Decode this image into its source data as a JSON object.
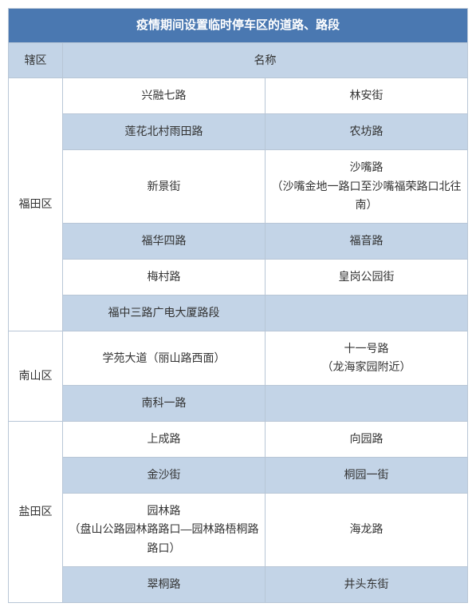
{
  "title": "疫情期间设置临时停车区的道路、路段",
  "headers": {
    "district": "辖区",
    "name": "名称"
  },
  "districts": [
    {
      "name": "福田区",
      "rows": [
        {
          "c1": "兴融七路",
          "c2": "林安街",
          "stripe": false
        },
        {
          "c1": "莲花北村雨田路",
          "c2": "农坊路",
          "stripe": true
        },
        {
          "c1": "新景街",
          "c2": "沙嘴路\n（沙嘴金地一路口至沙嘴福荣路口北往南）",
          "stripe": false
        },
        {
          "c1": "福华四路",
          "c2": "福音路",
          "stripe": true
        },
        {
          "c1": "梅村路",
          "c2": "皇岗公园街",
          "stripe": false
        },
        {
          "c1": "福中三路广电大厦路段",
          "c2": "",
          "stripe": true
        }
      ]
    },
    {
      "name": "南山区",
      "rows": [
        {
          "c1": "学苑大道（丽山路西面）",
          "c2": "十一号路\n（龙海家园附近）",
          "stripe": false
        },
        {
          "c1": "南科一路",
          "c2": "",
          "stripe": true
        }
      ]
    },
    {
      "name": "盐田区",
      "rows": [
        {
          "c1": "上成路",
          "c2": "向园路",
          "stripe": false
        },
        {
          "c1": "金沙街",
          "c2": "桐园一街",
          "stripe": true
        },
        {
          "c1": "园林路\n（盘山公路园林路路口—园林路梧桐路路口）",
          "c2": "海龙路",
          "stripe": false
        },
        {
          "c1": "翠桐路",
          "c2": "井头东街",
          "stripe": true
        }
      ]
    }
  ],
  "colors": {
    "title_bg": "#4a78b1",
    "header_bg": "#c3d4e7",
    "stripe_bg": "#c3d4e7",
    "border": "#b8c6d6",
    "text": "#333333",
    "title_text": "#ffffff"
  }
}
